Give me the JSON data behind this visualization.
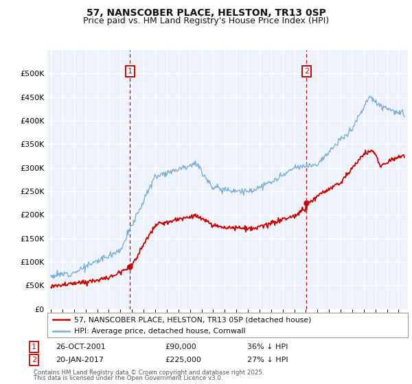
{
  "title": "57, NANSCOBER PLACE, HELSTON, TR13 0SP",
  "subtitle": "Price paid vs. HM Land Registry's House Price Index (HPI)",
  "ylim": [
    0,
    550000
  ],
  "yticks": [
    0,
    50000,
    100000,
    150000,
    200000,
    250000,
    300000,
    350000,
    400000,
    450000,
    500000
  ],
  "ytick_labels": [
    "£0",
    "£50K",
    "£100K",
    "£150K",
    "£200K",
    "£250K",
    "£300K",
    "£350K",
    "£400K",
    "£450K",
    "£500K"
  ],
  "background_color": "#ffffff",
  "plot_bg_color": "#eef3fb",
  "grid_color": "#ffffff",
  "hpi_color": "#7aadd4",
  "price_color": "#cc0000",
  "marker1_year": 2001.82,
  "marker1_price": 90000,
  "marker2_year": 2017.05,
  "marker2_price": 225000,
  "legend_line1": "57, NANSCOBER PLACE, HELSTON, TR13 0SP (detached house)",
  "legend_line2": "HPI: Average price, detached house, Cornwall",
  "footer1": "Contains HM Land Registry data © Crown copyright and database right 2025.",
  "footer2": "This data is licensed under the Open Government Licence v3.0.",
  "row1": [
    "1",
    "26-OCT-2001",
    "£90,000",
    "36% ↓ HPI"
  ],
  "row2": [
    "2",
    "20-JAN-2017",
    "£225,000",
    "27% ↓ HPI"
  ],
  "title_fontsize": 10,
  "subtitle_fontsize": 9
}
